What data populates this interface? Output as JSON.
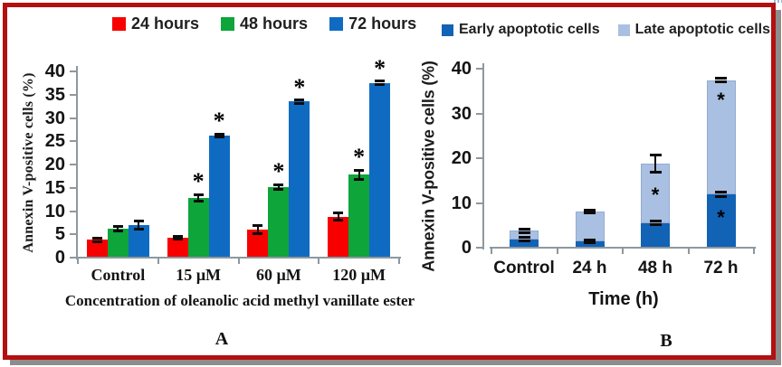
{
  "figure": {
    "background": "#ffffff",
    "border_color": "#b31010",
    "shadow_color": "#8d8d8d",
    "significance_marker": "*"
  },
  "chart_data": [
    {
      "panel": "A",
      "type": "bar",
      "title": "",
      "categories": [
        "Control",
        "15 µM",
        "60 µM",
        "120 µM"
      ],
      "series": [
        {
          "name": "24 hours",
          "color": "#f80000",
          "values": [
            3.8,
            4.2,
            6.0,
            8.8
          ],
          "errors": [
            0.4,
            0.3,
            0.8,
            0.8
          ],
          "significant": [
            false,
            false,
            false,
            false
          ]
        },
        {
          "name": "48 hours",
          "color": "#0ea53a",
          "values": [
            6.2,
            12.8,
            15.2,
            17.8
          ],
          "errors": [
            0.5,
            0.7,
            0.5,
            1.0
          ],
          "significant": [
            false,
            true,
            true,
            true
          ]
        },
        {
          "name": "72 hours",
          "color": "#0f6bc2",
          "values": [
            7.0,
            26.3,
            33.5,
            37.5
          ],
          "errors": [
            0.9,
            0.3,
            0.3,
            0.4
          ],
          "significant": [
            false,
            true,
            true,
            true
          ]
        }
      ],
      "ylabel": "Annexin V-positive cells (%)",
      "xlabel": "Concentration of oleanolic acid methyl vanillate ester",
      "ylim": [
        0,
        40
      ],
      "ytick_step": 5,
      "grid": false,
      "legend_position": "top",
      "panel_label": "A"
    },
    {
      "panel": "B",
      "type": "stacked-bar",
      "title": "",
      "categories": [
        "Control",
        "24 h",
        "48 h",
        "72 h"
      ],
      "series": [
        {
          "name": "Early apoptotic cells",
          "color": "#1262b6",
          "values": [
            1.9,
            1.4,
            5.5,
            11.9
          ],
          "errors": [
            0.4,
            0.3,
            0.4,
            0.5
          ],
          "asterisk_at": [
            null,
            null,
            null,
            7.1
          ]
        },
        {
          "name": "Late apoptotic cells",
          "color": "#a9c0e2",
          "values": [
            1.9,
            6.6,
            13.3,
            25.5
          ],
          "errors": [
            0.4,
            0.3,
            2.0,
            0.4
          ],
          "asterisk_at": [
            null,
            null,
            12.1,
            33.3
          ]
        }
      ],
      "ylabel": "Annexin V-positive cells (%)",
      "xlabel": "Time (h)",
      "ylim": [
        0,
        40
      ],
      "ytick_step": 10,
      "grid": false,
      "legend_position": "top",
      "panel_label": "B"
    }
  ]
}
